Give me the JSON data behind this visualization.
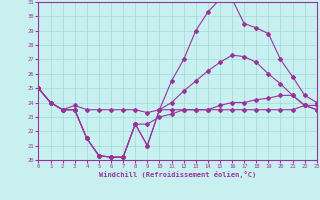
{
  "background_color": "#c8f0f0",
  "grid_color": "#a0d8d8",
  "line_color": "#993399",
  "xlabel": "Windchill (Refroidissement éolien,°C)",
  "hours": [
    0,
    1,
    2,
    3,
    4,
    5,
    6,
    7,
    8,
    9,
    10,
    11,
    12,
    13,
    14,
    15,
    16,
    17,
    18,
    19,
    20,
    21,
    22,
    23
  ],
  "line1": [
    25.0,
    24.0,
    23.5,
    23.5,
    21.5,
    20.3,
    20.2,
    20.2,
    22.5,
    21.0,
    23.5,
    25.5,
    27.0,
    29.0,
    30.3,
    31.2,
    31.2,
    29.5,
    29.2,
    28.8,
    27.0,
    25.8,
    24.5,
    24.0
  ],
  "line2": [
    25.0,
    24.0,
    23.5,
    23.8,
    23.5,
    23.5,
    23.5,
    23.5,
    23.5,
    23.3,
    23.5,
    24.0,
    24.8,
    25.5,
    26.2,
    26.8,
    27.3,
    27.2,
    26.8,
    26.0,
    25.3,
    24.5,
    23.8,
    23.5
  ],
  "line3": [
    25.0,
    24.0,
    23.5,
    23.5,
    21.5,
    20.3,
    20.2,
    20.2,
    22.5,
    22.5,
    23.0,
    23.2,
    23.5,
    23.5,
    23.5,
    23.8,
    24.0,
    24.0,
    24.2,
    24.3,
    24.5,
    24.5,
    23.8,
    23.5
  ],
  "line4": [
    25.0,
    24.0,
    23.5,
    23.5,
    21.5,
    20.3,
    20.2,
    20.2,
    22.5,
    21.0,
    23.5,
    23.5,
    23.5,
    23.5,
    23.5,
    23.5,
    23.5,
    23.5,
    23.5,
    23.5,
    23.5,
    23.5,
    23.8,
    23.8
  ],
  "ylim_min": 20,
  "ylim_max": 31,
  "xlim_min": 0,
  "xlim_max": 23
}
